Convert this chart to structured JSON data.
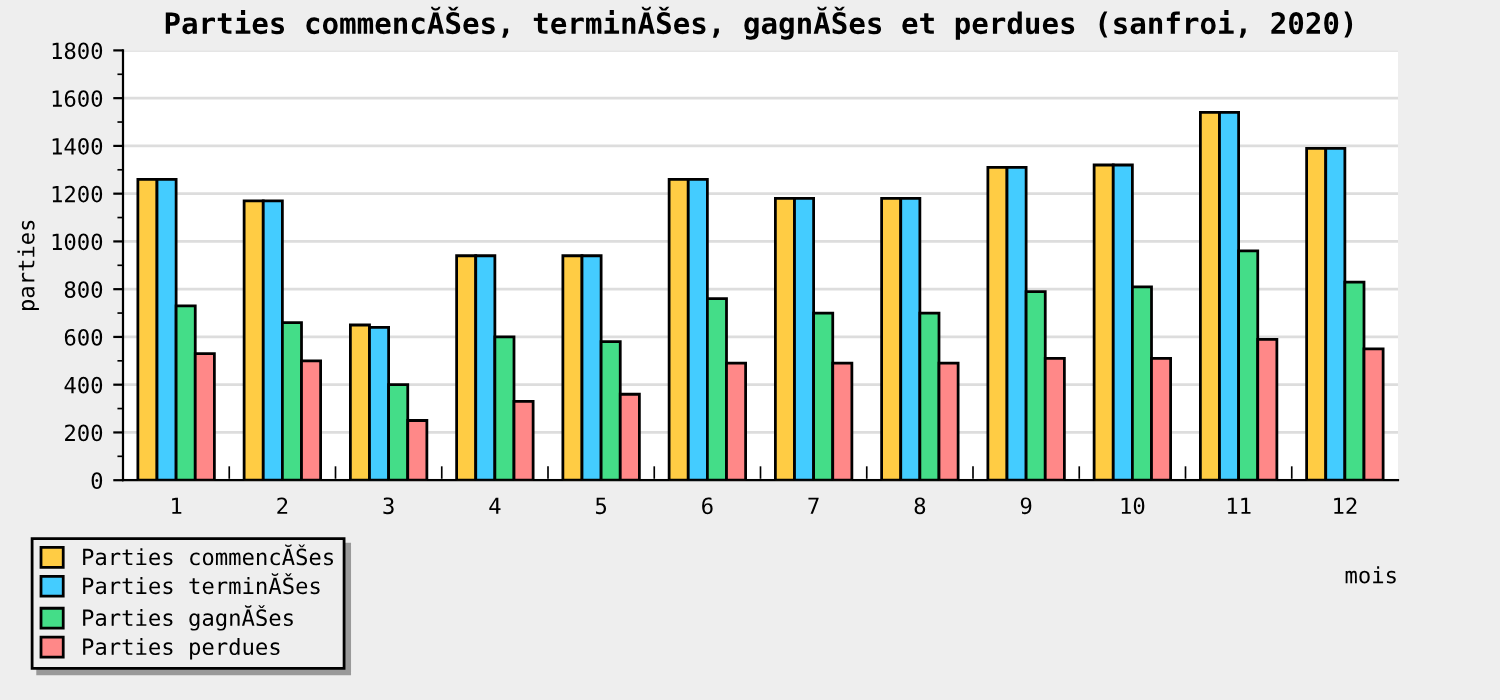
{
  "chart_data": {
    "type": "bar",
    "title": "Parties commencĂŠes, terminĂŠes, gagnĂŠes et perdues (sanfroi, 2020)",
    "xlabel": "mois",
    "ylabel": "parties",
    "categories": [
      "1",
      "2",
      "3",
      "4",
      "5",
      "6",
      "7",
      "8",
      "9",
      "10",
      "11",
      "12"
    ],
    "series": [
      {
        "name": "Parties commencĂŠes",
        "color": "#ffcc44",
        "values": [
          1260,
          1170,
          650,
          940,
          940,
          1260,
          1180,
          1180,
          1310,
          1320,
          1540,
          1390
        ]
      },
      {
        "name": "Parties terminĂŠes",
        "color": "#44ccff",
        "values": [
          1260,
          1170,
          640,
          940,
          940,
          1260,
          1180,
          1180,
          1310,
          1320,
          1540,
          1390
        ]
      },
      {
        "name": "Parties gagnĂŠes",
        "color": "#44dd88",
        "values": [
          730,
          660,
          400,
          600,
          580,
          760,
          700,
          700,
          790,
          810,
          960,
          830
        ]
      },
      {
        "name": "Parties perdues",
        "color": "#ff8888",
        "values": [
          530,
          500,
          250,
          330,
          360,
          490,
          490,
          490,
          510,
          510,
          590,
          550
        ]
      }
    ],
    "ylim": [
      0,
      1800
    ],
    "yticks": [
      0,
      200,
      400,
      600,
      800,
      1000,
      1200,
      1400,
      1600,
      1800
    ],
    "grid": "y",
    "legend": "bottom left"
  }
}
